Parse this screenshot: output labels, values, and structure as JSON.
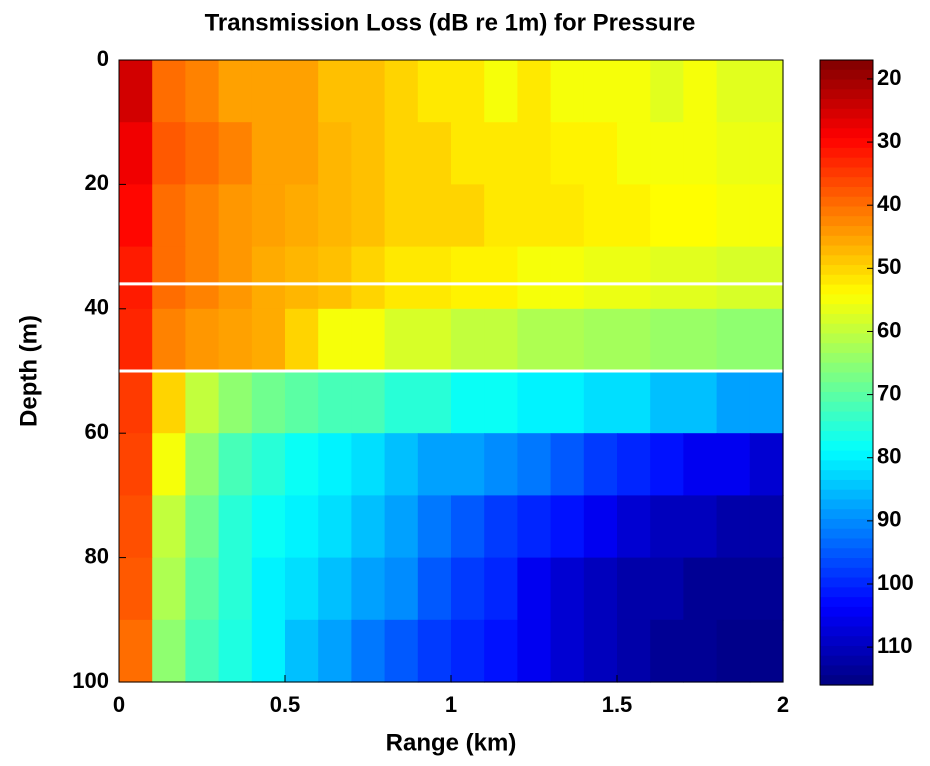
{
  "chart_data": {
    "type": "heatmap",
    "title": "Transmission Loss (dB re 1m) for Pressure",
    "xlabel": "Range (km)",
    "ylabel": "Depth (m)",
    "x": [
      0.05,
      0.15,
      0.25,
      0.35,
      0.45,
      0.55,
      0.65,
      0.75,
      0.85,
      0.95,
      1.05,
      1.15,
      1.25,
      1.35,
      1.45,
      1.55,
      1.65,
      1.75,
      1.85,
      1.95
    ],
    "y": [
      5,
      15,
      25,
      35,
      45,
      55,
      65,
      75,
      85,
      95
    ],
    "values": [
      [
        25,
        40,
        42,
        45,
        45,
        45,
        48,
        48,
        50,
        52,
        52,
        55,
        52,
        55,
        55,
        55,
        57,
        55,
        57,
        57
      ],
      [
        28,
        38,
        40,
        42,
        45,
        45,
        47,
        48,
        50,
        50,
        52,
        52,
        52,
        53,
        53,
        55,
        55,
        55,
        56,
        56
      ],
      [
        30,
        40,
        42,
        44,
        45,
        46,
        47,
        48,
        50,
        50,
        50,
        52,
        52,
        52,
        53,
        53,
        54,
        54,
        55,
        55
      ],
      [
        32,
        40,
        42,
        44,
        46,
        47,
        48,
        50,
        52,
        52,
        53,
        53,
        55,
        55,
        56,
        56,
        57,
        57,
        58,
        58
      ],
      [
        33,
        42,
        44,
        45,
        46,
        50,
        55,
        55,
        58,
        58,
        60,
        60,
        62,
        62,
        63,
        63,
        64,
        64,
        65,
        65
      ],
      [
        35,
        50,
        60,
        65,
        68,
        70,
        72,
        72,
        75,
        75,
        78,
        78,
        80,
        80,
        82,
        82,
        85,
        85,
        88,
        88
      ],
      [
        36,
        55,
        65,
        72,
        75,
        78,
        80,
        82,
        85,
        88,
        88,
        90,
        92,
        95,
        98,
        100,
        102,
        105,
        105,
        108
      ],
      [
        37,
        60,
        68,
        75,
        78,
        80,
        82,
        85,
        88,
        92,
        95,
        98,
        100,
        102,
        105,
        108,
        110,
        110,
        112,
        112
      ],
      [
        38,
        62,
        70,
        75,
        80,
        82,
        85,
        88,
        90,
        95,
        98,
        100,
        105,
        108,
        110,
        112,
        112,
        114,
        114,
        114
      ],
      [
        40,
        65,
        72,
        76,
        80,
        85,
        88,
        92,
        95,
        98,
        100,
        102,
        105,
        108,
        110,
        112,
        114,
        114,
        115,
        115
      ]
    ],
    "xlim": [
      0,
      2
    ],
    "xticks": [
      0,
      0.5,
      1,
      1.5,
      2
    ],
    "ylim": [
      0,
      100
    ],
    "yticks": [
      0,
      20,
      40,
      60,
      80,
      100
    ],
    "y_reversed": true,
    "clim": [
      17,
      116
    ],
    "cticks": [
      20,
      30,
      40,
      50,
      60,
      70,
      80,
      90,
      100,
      110
    ],
    "colormap": "jet_r",
    "hlines": [
      36,
      50
    ],
    "hline_color": "#ffffff"
  }
}
